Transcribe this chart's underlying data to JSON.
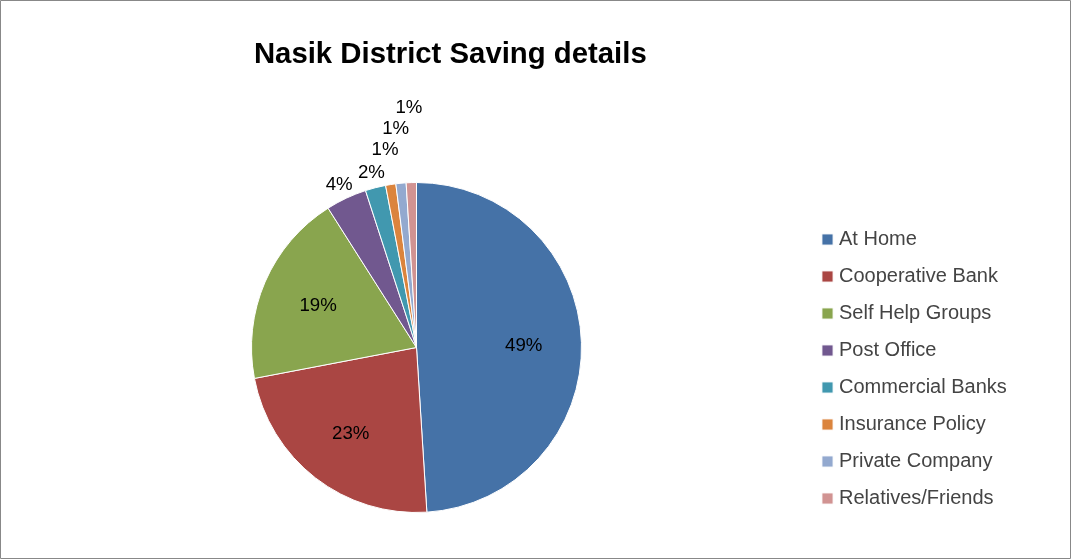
{
  "chart_data": {
    "type": "pie",
    "title": "Nasik District Saving details",
    "categories": [
      "At Home",
      "Cooperative Bank",
      "Self Help Groups",
      "Post Office",
      "Commercial Banks",
      "Insurance Policy",
      "Private Company",
      "Relatives/Friends"
    ],
    "values": [
      49,
      23,
      19,
      4,
      2,
      1,
      1,
      1
    ],
    "colors": [
      "#4572a7",
      "#aa4643",
      "#89a54e",
      "#71588f",
      "#4198af",
      "#db843d",
      "#93a9cf",
      "#d19392"
    ],
    "value_labels": [
      "49%",
      "23%",
      "19%",
      "4%",
      "2%",
      "1%",
      "1%",
      "1%"
    ],
    "legend": "right"
  }
}
